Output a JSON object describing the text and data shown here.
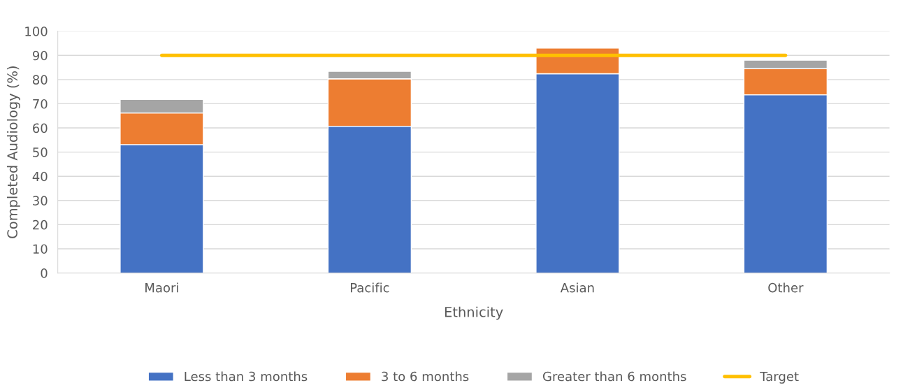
{
  "chart_data": {
    "type": "bar",
    "stacked": true,
    "xlabel": "Ethnicity",
    "ylabel": "Completed Audiology (%)",
    "categories": [
      "Maori",
      "Pacific",
      "Asian",
      "Other"
    ],
    "series": [
      {
        "name": "Less than 3 months",
        "color": "#4472c4",
        "values": [
          53.1,
          60.7,
          82.4,
          73.7
        ]
      },
      {
        "name": "3 to 6 months",
        "color": "#ed7d31",
        "values": [
          13.1,
          19.6,
          10.6,
          10.8
        ]
      },
      {
        "name": "Greater than 6 months",
        "color": "#a5a5a5",
        "values": [
          5.6,
          3.1,
          null,
          3.5
        ]
      },
      {
        "name": "Target",
        "type": "line",
        "color": "#ffc000",
        "values": [
          90,
          90,
          90,
          90
        ]
      }
    ],
    "ylim": [
      0,
      100
    ],
    "yticks": [
      0,
      10,
      20,
      30,
      40,
      50,
      60,
      70,
      80,
      90,
      100
    ],
    "grid": "y",
    "legend": "bottom"
  }
}
